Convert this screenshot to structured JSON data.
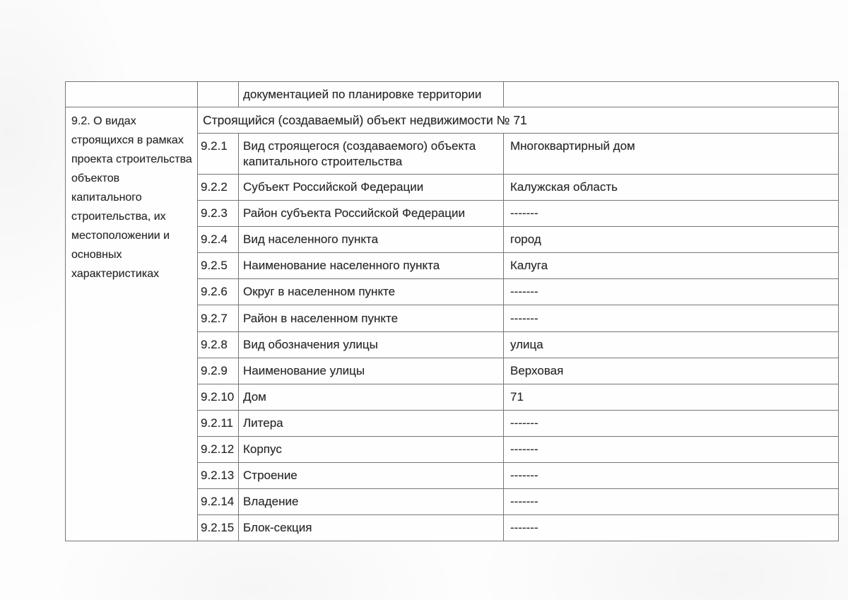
{
  "colors": {
    "border": "#767676",
    "text": "#262626",
    "paper": "#fdfdfd"
  },
  "table": {
    "continuation_label": "документацией по планировке территории",
    "section_title": "9.2. О видах строящихся в рамках проекта строительства объектов капитального строительства, их местоположении и основных характеристиках",
    "object_header": "Строящийся (создаваемый) объект недвижимости № 71",
    "rows": [
      {
        "num": "9.2.1",
        "label": "Вид строящегося (создаваемого) объекта капитального строительства",
        "value": "Многоквартирный дом"
      },
      {
        "num": "9.2.2",
        "label": "Субъект Российской Федерации",
        "value": "Калужская область"
      },
      {
        "num": "9.2.3",
        "label": "Район субъекта Российской Федерации",
        "value": "-------"
      },
      {
        "num": "9.2.4",
        "label": "Вид населенного пункта",
        "value": "город"
      },
      {
        "num": "9.2.5",
        "label": "Наименование населенного пункта",
        "value": "Калуга"
      },
      {
        "num": "9.2.6",
        "label": "Округ в населенном пункте",
        "value": "-------"
      },
      {
        "num": "9.2.7",
        "label": "Район в населенном пункте",
        "value": "-------"
      },
      {
        "num": "9.2.8",
        "label": "Вид обозначения улицы",
        "value": "улица"
      },
      {
        "num": "9.2.9",
        "label": "Наименование улицы",
        "value": "Верховая"
      },
      {
        "num": "9.2.10",
        "label": "Дом",
        "value": "71"
      },
      {
        "num": "9.2.11",
        "label": "Литера",
        "value": "-------"
      },
      {
        "num": "9.2.12",
        "label": "Корпус",
        "value": "-------"
      },
      {
        "num": "9.2.13",
        "label": "Строение",
        "value": "-------"
      },
      {
        "num": "9.2.14",
        "label": "Владение",
        "value": "-------"
      },
      {
        "num": "9.2.15",
        "label": "Блок-секция",
        "value": "-------"
      }
    ]
  }
}
